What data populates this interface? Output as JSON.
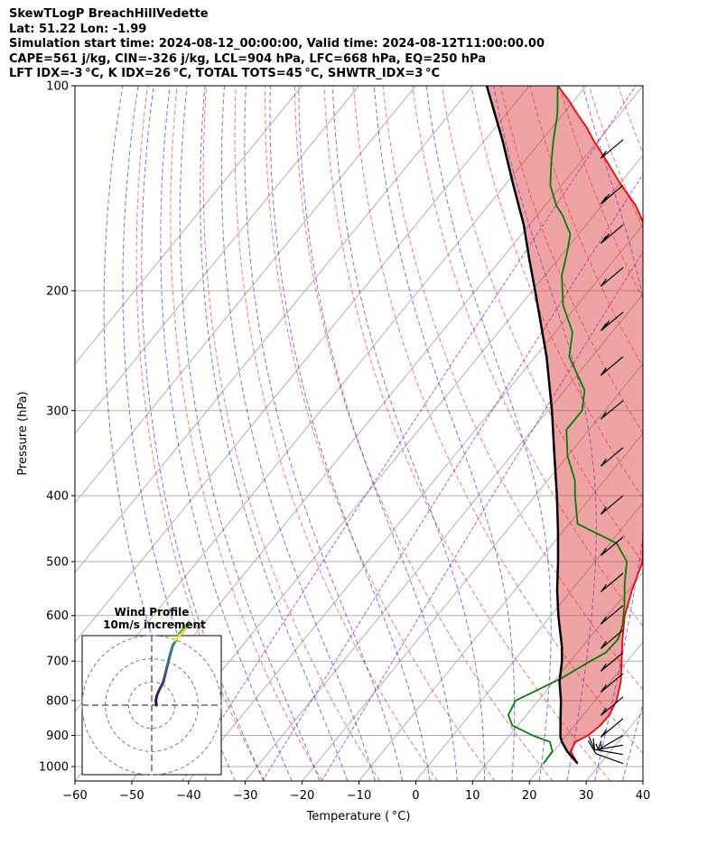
{
  "header": {
    "line1": "SkewTLogP BreachHillVedette",
    "line2": "Lat: 51.22   Lon: -1.99",
    "line3": "Simulation start time: 2024-08-12_00:00:00, Valid time: 2024-08-12T11:00:00.00",
    "line4": "CAPE=561 j/kg, CIN=-326 j/kg, LCL=904 hPa, LFC=668 hPa, EQ=250 hPa",
    "line5": "LFT IDX=-3 °C, K IDX=26 °C, TOTAL TOTS=45 °C, SHWTR_IDX=3 °C"
  },
  "chart_data": {
    "type": "line",
    "xlabel": "Temperature ( °C)",
    "ylabel": "Pressure (hPa)",
    "xlim": [
      -60,
      40
    ],
    "ylim": [
      1050,
      100
    ],
    "y_scale": "log",
    "x_ticks": [
      -60,
      -50,
      -40,
      -30,
      -20,
      -10,
      0,
      10,
      20,
      30,
      40
    ],
    "x_tick_labels": [
      "−60",
      "−50",
      "−40",
      "−30",
      "−20",
      "−10",
      "0",
      "10",
      "20",
      "30",
      "40"
    ],
    "y_ticks": [
      1000,
      900,
      800,
      700,
      600,
      500,
      400,
      300,
      200,
      100
    ],
    "y_tick_labels": [
      "1000",
      "900",
      "800",
      "700",
      "600",
      "500",
      "400",
      "300",
      "200",
      "100"
    ],
    "grid": true,
    "series": [
      {
        "name": "",
        "color": "#ff0000",
        "pressure": [
          990,
          950,
          920,
          900,
          870,
          840,
          800,
          750,
          700,
          650,
          600,
          550,
          500,
          450,
          400,
          350,
          300,
          270,
          250,
          230,
          210,
          200,
          190,
          180,
          170,
          160,
          150,
          140,
          130,
          120,
          115,
          110,
          105,
          100
        ],
        "temperature": [
          26.0,
          23.0,
          22.5,
          23.8,
          24.5,
          24.6,
          23.8,
          21.8,
          19.0,
          16.0,
          13.0,
          10.6,
          8.4,
          4.0,
          -0.3,
          -5.5,
          -10.1,
          -13.5,
          -16.5,
          -20.2,
          -24.0,
          -26.5,
          -29.3,
          -32.5,
          -36.0,
          -39.8,
          -44.0,
          -49.5,
          -55.0,
          -61.0,
          -64.0,
          -67.5,
          -71.0,
          -75.0
        ]
      },
      {
        "name": "",
        "color": "#008000",
        "pressure": [
          990,
          950,
          920,
          900,
          870,
          840,
          800,
          770,
          740,
          700,
          680,
          650,
          620,
          580,
          540,
          500,
          470,
          440,
          400,
          380,
          350,
          320,
          300,
          280,
          250,
          230,
          210,
          190,
          175,
          165,
          160,
          155,
          150,
          140,
          130,
          120,
          110,
          100
        ],
        "temperature": [
          20.0,
          19.8,
          18.0,
          14.0,
          9.0,
          6.8,
          6.0,
          8.5,
          11.0,
          13.5,
          15.0,
          15.2,
          14.0,
          11.5,
          8.5,
          5.6,
          1.2,
          -8.5,
          -13.0,
          -15.2,
          -20.0,
          -24.0,
          -24.0,
          -26.5,
          -34.0,
          -37.0,
          -42.5,
          -47.0,
          -49.5,
          -51.5,
          -53.5,
          -55.5,
          -58.0,
          -62.0,
          -65.0,
          -68.0,
          -71.0,
          -75.0
        ]
      },
      {
        "name": "",
        "color": "#000000",
        "pressure": [
          990,
          950,
          920,
          904,
          850,
          800,
          750,
          700,
          668,
          600,
          550,
          500,
          450,
          400,
          350,
          300,
          250,
          200,
          180,
          160,
          140,
          120,
          100
        ],
        "temperature": [
          26.0,
          22.4,
          20.1,
          19.1,
          16.5,
          14.0,
          11.0,
          8.5,
          6.5,
          1.3,
          -2.6,
          -6.5,
          -11.0,
          -16.2,
          -22.3,
          -29.3,
          -38.0,
          -49.5,
          -55.0,
          -61.0,
          -68.5,
          -77.0,
          -87.5
        ]
      }
    ],
    "winds": [
      {
        "pressure": 990,
        "speed_kt": 10,
        "direction_deg": 250
      },
      {
        "pressure": 960,
        "speed_kt": 10,
        "direction_deg": 260
      },
      {
        "pressure": 930,
        "speed_kt": 15,
        "direction_deg": 280
      },
      {
        "pressure": 900,
        "speed_kt": 15,
        "direction_deg": 300
      },
      {
        "pressure": 850,
        "speed_kt": 15,
        "direction_deg": 310
      },
      {
        "pressure": 790,
        "speed_kt": 15,
        "direction_deg": 310
      },
      {
        "pressure": 730,
        "speed_kt": 15,
        "direction_deg": 310
      },
      {
        "pressure": 680,
        "speed_kt": 15,
        "direction_deg": 310
      },
      {
        "pressure": 630,
        "speed_kt": 15,
        "direction_deg": 310
      },
      {
        "pressure": 580,
        "speed_kt": 15,
        "direction_deg": 310
      },
      {
        "pressure": 520,
        "speed_kt": 15,
        "direction_deg": 310
      },
      {
        "pressure": 460,
        "speed_kt": 15,
        "direction_deg": 310
      },
      {
        "pressure": 400,
        "speed_kt": 15,
        "direction_deg": 310
      },
      {
        "pressure": 340,
        "speed_kt": 15,
        "direction_deg": 310
      },
      {
        "pressure": 290,
        "speed_kt": 15,
        "direction_deg": 310
      },
      {
        "pressure": 250,
        "speed_kt": 15,
        "direction_deg": 310
      },
      {
        "pressure": 215,
        "speed_kt": 20,
        "direction_deg": 310
      },
      {
        "pressure": 185,
        "speed_kt": 15,
        "direction_deg": 310
      },
      {
        "pressure": 160,
        "speed_kt": 20,
        "direction_deg": 310
      },
      {
        "pressure": 140,
        "speed_kt": 20,
        "direction_deg": 310
      },
      {
        "pressure": 120,
        "speed_kt": 15,
        "direction_deg": 310
      }
    ],
    "hodograph": {
      "title": "Wind Profile",
      "subtitle": "10m/s increment",
      "rings": [
        10,
        20,
        30
      ],
      "u": [
        2,
        1.8,
        2.2,
        3,
        4,
        5,
        5.5,
        6,
        6.5,
        7,
        7.5,
        8,
        8.6,
        9.2,
        10.5,
        11.5,
        12,
        13,
        14,
        14.5,
        15,
        15.5,
        16,
        14.5,
        13.5,
        12,
        11,
        10
      ],
      "v": [
        0,
        2,
        4,
        6,
        8,
        10,
        12,
        14,
        16,
        18,
        20,
        22,
        24,
        26,
        28,
        30,
        31,
        32,
        33.5,
        34,
        34.5,
        35,
        36,
        33,
        31.5,
        30,
        29,
        28
      ]
    }
  }
}
